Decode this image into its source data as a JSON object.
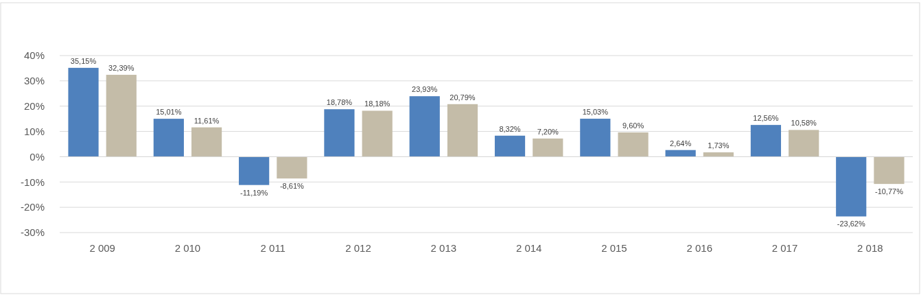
{
  "chart_data": {
    "type": "bar",
    "categories": [
      "2 009",
      "2 010",
      "2 011",
      "2 012",
      "2 013",
      "2 014",
      "2 015",
      "2 016",
      "2 017",
      "2 018"
    ],
    "series": [
      {
        "color": "#4f81bd",
        "values": [
          35.15,
          15.01,
          -11.19,
          18.78,
          23.93,
          8.32,
          15.03,
          2.64,
          12.56,
          -23.62
        ],
        "value_labels": [
          "35,15%",
          "15,01%",
          "-11,19%",
          "18,78%",
          "23,93%",
          "8,32%",
          "15,03%",
          "2,64%",
          "12,56%",
          "-23,62%"
        ]
      },
      {
        "color": "#c4bca8",
        "values": [
          32.39,
          11.61,
          -8.61,
          18.18,
          20.79,
          7.2,
          9.6,
          1.73,
          10.58,
          -10.77
        ],
        "value_labels": [
          "32,39%",
          "11,61%",
          "-8,61%",
          "18,18%",
          "20,79%",
          "7,20%",
          "9,60%",
          "1,73%",
          "10,58%",
          "-10,77%"
        ]
      }
    ],
    "ylim": [
      -30,
      40
    ],
    "yticks": [
      {
        "value": -30,
        "label": "-30%"
      },
      {
        "value": -20,
        "label": "-20%"
      },
      {
        "value": -10,
        "label": "-10%"
      },
      {
        "value": 0,
        "label": "0%"
      },
      {
        "value": 10,
        "label": "10%"
      },
      {
        "value": 20,
        "label": "20%"
      },
      {
        "value": 30,
        "label": "30%"
      },
      {
        "value": 40,
        "label": "40%"
      }
    ],
    "grid": "y"
  }
}
